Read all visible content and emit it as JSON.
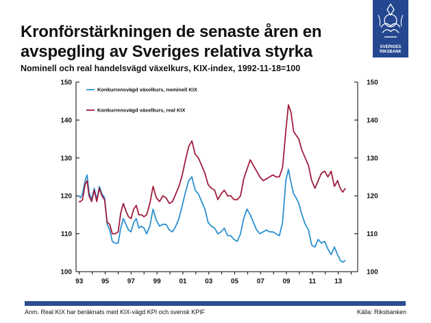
{
  "header": {
    "title": "Kronförstärkningen de senaste åren en avspegling av Sveriges relativa styrka",
    "subtitle": "Nominell och real handelsvägd växelkurs, KIX-index, 1992-11-18=100"
  },
  "logo": {
    "line1": "SVERIGES",
    "line2": "RIKSBANK"
  },
  "footer": {
    "note": "Anm. Real KIX har beräknats med KIX-vägd KPI och svensk KPIF",
    "source": "Källa: Riksbanken"
  },
  "colors": {
    "nominal": "#2a8fcf",
    "real": "#9e1b3b",
    "brand": "#24478f"
  },
  "chart_data": {
    "type": "line",
    "title": "",
    "xlabel": "",
    "ylabel": "",
    "xlim": [
      1992.75,
      2014.5
    ],
    "ylim": [
      100,
      150
    ],
    "x_tick_labels": [
      "93",
      "95",
      "97",
      "99",
      "01",
      "03",
      "05",
      "07",
      "09",
      "11",
      "13"
    ],
    "x_tick_values": [
      1993,
      1995,
      1997,
      1999,
      2001,
      2003,
      2005,
      2007,
      2009,
      2011,
      2013
    ],
    "y_ticks_left": [
      100,
      110,
      120,
      130,
      140,
      150
    ],
    "y_ticks_right": [
      100,
      110,
      120,
      130,
      140,
      150
    ],
    "legend": {
      "location": "top-left"
    },
    "series": [
      {
        "name": "Konkurrensvägd växelkurs, nominell KIX",
        "color": "#2a8fcf",
        "points": [
          [
            1992.95,
            120
          ],
          [
            1993.1,
            119.5
          ],
          [
            1993.25,
            120.5
          ],
          [
            1993.45,
            124
          ],
          [
            1993.6,
            125.5
          ],
          [
            1993.75,
            121
          ],
          [
            1993.95,
            119
          ],
          [
            1994.15,
            122
          ],
          [
            1994.35,
            119
          ],
          [
            1994.55,
            122.5
          ],
          [
            1994.75,
            120.5
          ],
          [
            1994.95,
            119.5
          ],
          [
            1995.15,
            112.5
          ],
          [
            1995.35,
            111
          ],
          [
            1995.55,
            108
          ],
          [
            1995.75,
            107.5
          ],
          [
            1996.0,
            107.5
          ],
          [
            1996.2,
            111.5
          ],
          [
            1996.4,
            114
          ],
          [
            1996.6,
            112.5
          ],
          [
            1996.8,
            111
          ],
          [
            1997.0,
            110.5
          ],
          [
            1997.2,
            113
          ],
          [
            1997.4,
            114
          ],
          [
            1997.6,
            111.5
          ],
          [
            1997.8,
            112
          ],
          [
            1998.0,
            111.5
          ],
          [
            1998.2,
            110
          ],
          [
            1998.45,
            112
          ],
          [
            1998.7,
            116.5
          ],
          [
            1998.95,
            113.5
          ],
          [
            1999.2,
            112
          ],
          [
            1999.45,
            112.5
          ],
          [
            1999.7,
            112.5
          ],
          [
            1999.95,
            111
          ],
          [
            2000.2,
            110.5
          ],
          [
            2000.45,
            112
          ],
          [
            2000.7,
            114
          ],
          [
            2000.95,
            117.5
          ],
          [
            2001.2,
            121
          ],
          [
            2001.45,
            124
          ],
          [
            2001.7,
            125
          ],
          [
            2001.95,
            121.5
          ],
          [
            2002.2,
            120.5
          ],
          [
            2002.45,
            118.5
          ],
          [
            2002.7,
            116.5
          ],
          [
            2002.95,
            113
          ],
          [
            2003.2,
            112
          ],
          [
            2003.45,
            111.5
          ],
          [
            2003.7,
            110
          ],
          [
            2003.95,
            110.5
          ],
          [
            2004.2,
            111.5
          ],
          [
            2004.45,
            109.5
          ],
          [
            2004.7,
            109.5
          ],
          [
            2004.95,
            108.5
          ],
          [
            2005.2,
            108
          ],
          [
            2005.45,
            110
          ],
          [
            2005.7,
            114
          ],
          [
            2005.95,
            116.5
          ],
          [
            2006.2,
            115
          ],
          [
            2006.45,
            113
          ],
          [
            2006.7,
            111
          ],
          [
            2006.95,
            110
          ],
          [
            2007.2,
            110.5
          ],
          [
            2007.45,
            111
          ],
          [
            2007.7,
            110.5
          ],
          [
            2007.95,
            110.5
          ],
          [
            2008.2,
            110
          ],
          [
            2008.45,
            109.5
          ],
          [
            2008.7,
            113
          ],
          [
            2008.95,
            124
          ],
          [
            2009.15,
            127
          ],
          [
            2009.35,
            123.5
          ],
          [
            2009.55,
            120.5
          ],
          [
            2009.75,
            119.5
          ],
          [
            2009.95,
            118
          ],
          [
            2010.2,
            115
          ],
          [
            2010.45,
            112.5
          ],
          [
            2010.7,
            111
          ],
          [
            2010.95,
            107
          ],
          [
            2011.2,
            106.5
          ],
          [
            2011.45,
            108.5
          ],
          [
            2011.7,
            107.5
          ],
          [
            2011.95,
            108
          ],
          [
            2012.2,
            106
          ],
          [
            2012.45,
            104.5
          ],
          [
            2012.7,
            106.5
          ],
          [
            2012.95,
            104.5
          ],
          [
            2013.15,
            103
          ],
          [
            2013.35,
            102.5
          ],
          [
            2013.55,
            103
          ]
        ]
      },
      {
        "name": "Konkurrensvägd växelkurs, real KIX",
        "color": "#9e1b3b",
        "points": [
          [
            1992.95,
            118.5
          ],
          [
            1993.1,
            118.5
          ],
          [
            1993.25,
            119
          ],
          [
            1993.45,
            123
          ],
          [
            1993.6,
            124
          ],
          [
            1993.75,
            120
          ],
          [
            1993.95,
            118.5
          ],
          [
            1994.15,
            121.5
          ],
          [
            1994.35,
            118.5
          ],
          [
            1994.55,
            122
          ],
          [
            1994.75,
            120
          ],
          [
            1994.95,
            119
          ],
          [
            1995.15,
            113
          ],
          [
            1995.35,
            112.5
          ],
          [
            1995.55,
            110
          ],
          [
            1995.75,
            110
          ],
          [
            1996.0,
            110.5
          ],
          [
            1996.2,
            115.5
          ],
          [
            1996.4,
            118
          ],
          [
            1996.6,
            116
          ],
          [
            1996.8,
            114.5
          ],
          [
            1997.0,
            114
          ],
          [
            1997.2,
            116.5
          ],
          [
            1997.4,
            117.5
          ],
          [
            1997.6,
            115
          ],
          [
            1997.8,
            115
          ],
          [
            1998.0,
            114.5
          ],
          [
            1998.2,
            115
          ],
          [
            1998.45,
            118
          ],
          [
            1998.7,
            122.5
          ],
          [
            1998.95,
            119.5
          ],
          [
            1999.2,
            118.5
          ],
          [
            1999.45,
            120
          ],
          [
            1999.7,
            119.5
          ],
          [
            1999.95,
            118
          ],
          [
            2000.2,
            118.5
          ],
          [
            2000.45,
            120.5
          ],
          [
            2000.7,
            122.5
          ],
          [
            2000.95,
            125.5
          ],
          [
            2001.2,
            129.5
          ],
          [
            2001.45,
            133
          ],
          [
            2001.7,
            134.5
          ],
          [
            2001.95,
            131
          ],
          [
            2002.2,
            130
          ],
          [
            2002.45,
            128
          ],
          [
            2002.7,
            126
          ],
          [
            2002.95,
            123
          ],
          [
            2003.2,
            122
          ],
          [
            2003.45,
            121.5
          ],
          [
            2003.7,
            119
          ],
          [
            2003.95,
            120.5
          ],
          [
            2004.2,
            121.5
          ],
          [
            2004.45,
            120
          ],
          [
            2004.7,
            120
          ],
          [
            2004.95,
            119
          ],
          [
            2005.2,
            119
          ],
          [
            2005.45,
            120
          ],
          [
            2005.7,
            124.5
          ],
          [
            2005.95,
            127
          ],
          [
            2006.2,
            129.5
          ],
          [
            2006.45,
            128
          ],
          [
            2006.7,
            126.5
          ],
          [
            2006.95,
            125
          ],
          [
            2007.2,
            124
          ],
          [
            2007.45,
            124.5
          ],
          [
            2007.7,
            125
          ],
          [
            2007.95,
            125.5
          ],
          [
            2008.2,
            125
          ],
          [
            2008.45,
            125
          ],
          [
            2008.7,
            127.5
          ],
          [
            2008.95,
            137
          ],
          [
            2009.15,
            144
          ],
          [
            2009.35,
            142
          ],
          [
            2009.55,
            137
          ],
          [
            2009.75,
            136
          ],
          [
            2009.95,
            135
          ],
          [
            2010.2,
            132
          ],
          [
            2010.45,
            130
          ],
          [
            2010.7,
            128
          ],
          [
            2010.95,
            124
          ],
          [
            2011.2,
            122
          ],
          [
            2011.45,
            124
          ],
          [
            2011.7,
            126
          ],
          [
            2011.95,
            126.5
          ],
          [
            2012.2,
            125
          ],
          [
            2012.45,
            126.5
          ],
          [
            2012.7,
            122.5
          ],
          [
            2012.95,
            124
          ],
          [
            2013.15,
            122
          ],
          [
            2013.35,
            121
          ],
          [
            2013.55,
            122
          ]
        ]
      }
    ]
  }
}
